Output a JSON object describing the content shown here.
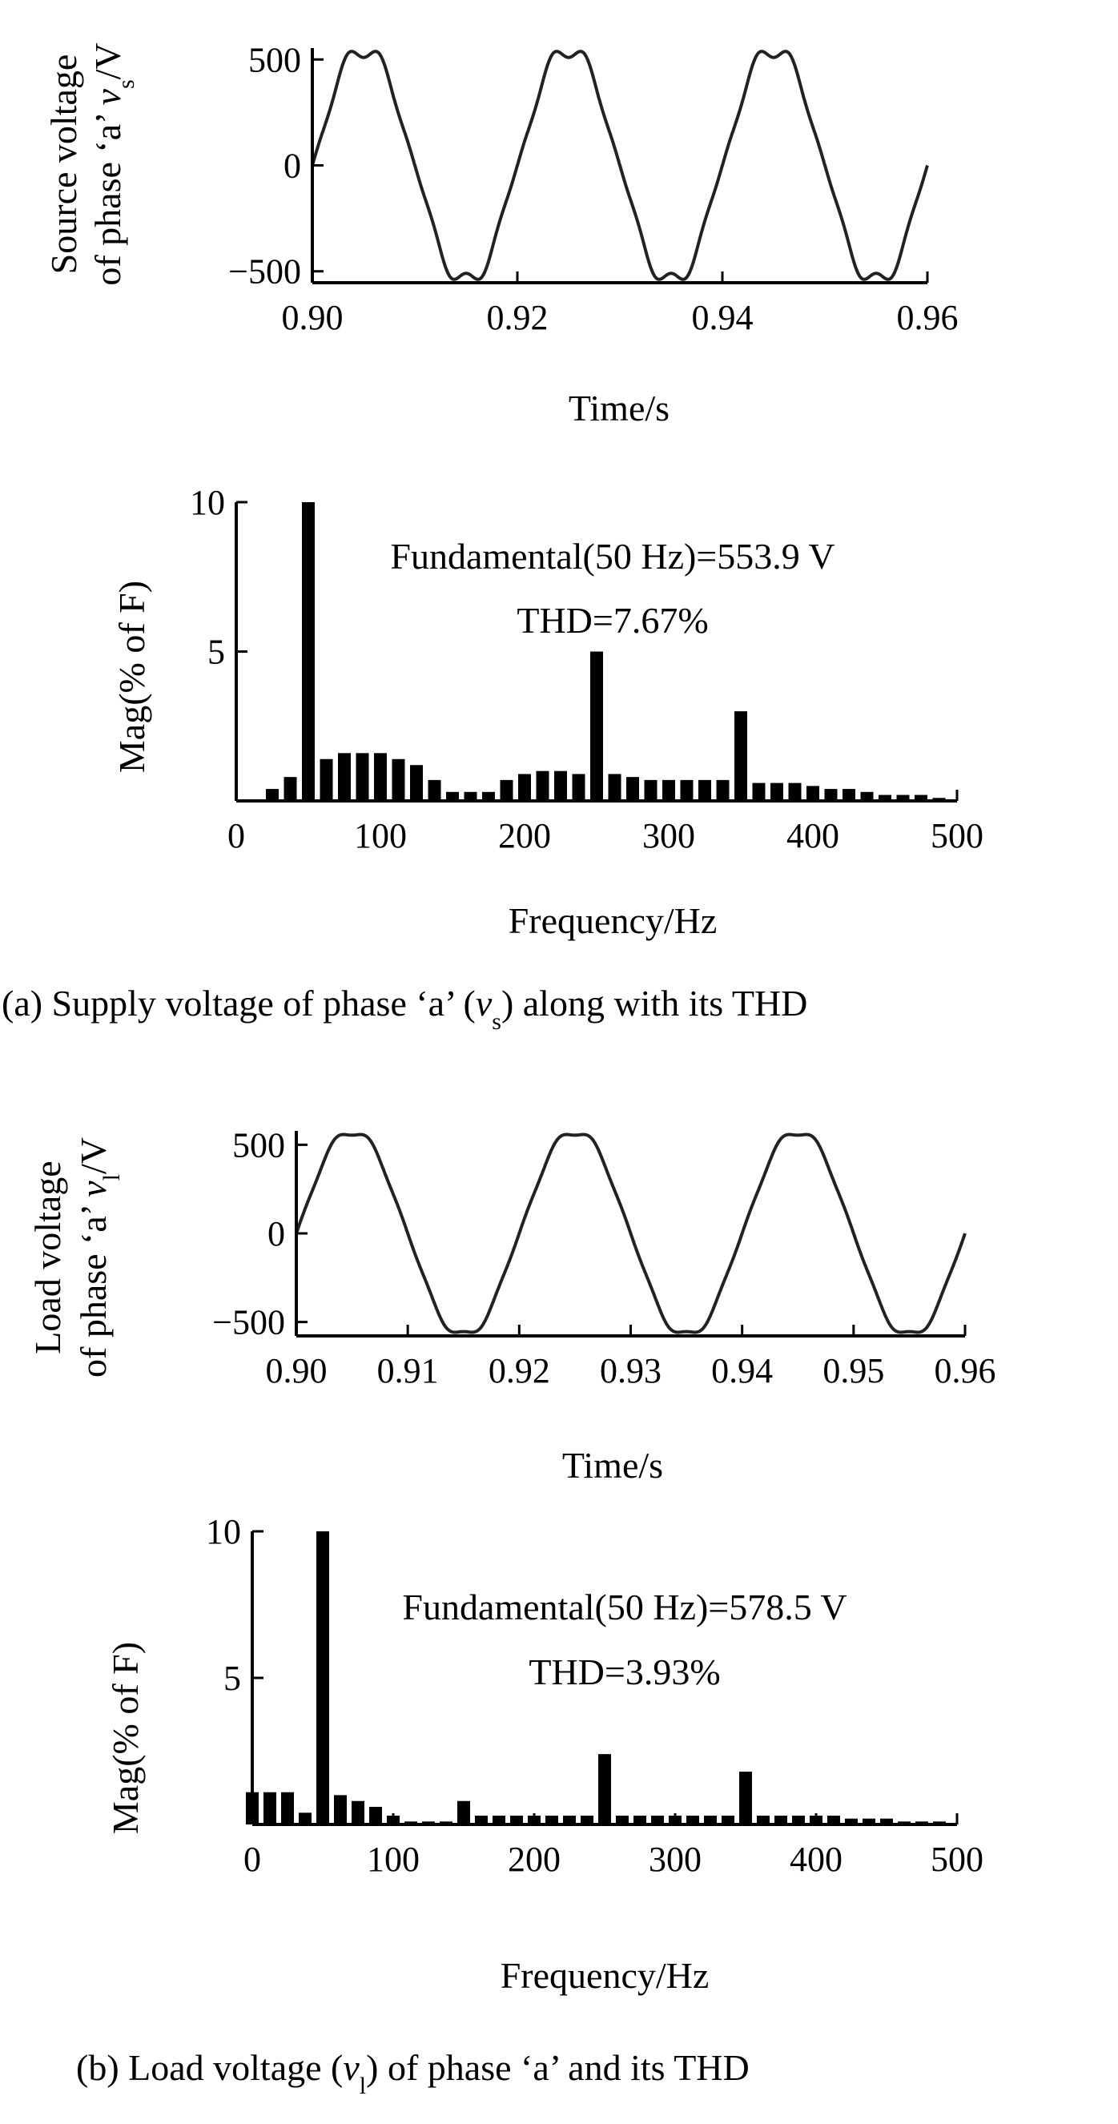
{
  "captions": {
    "a": {
      "pre": "(a) Supply voltage of  phase ‘a’ (",
      "var": "v",
      "sub": "s",
      "post": ") along with its THD"
    },
    "b": {
      "pre": "(b) Load voltage (",
      "var": "v",
      "sub": "l",
      "post": ") of phase ‘a’ and its THD"
    }
  },
  "chart_data": [
    {
      "id": "a-time",
      "type": "line",
      "title": "",
      "xlabel": "Time/s",
      "ylabel": {
        "line1": "Source voltage",
        "line2_pre": "of phase ‘a’ ",
        "var": "v",
        "sub": "s",
        "unit": "/V"
      },
      "xlim": [
        0.9,
        0.96
      ],
      "ylim": [
        -553.9,
        553.9
      ],
      "xticks": [
        "0.90",
        "0.92",
        "0.94",
        "0.96"
      ],
      "xtick_values": [
        0.9,
        0.92,
        0.94,
        0.96
      ],
      "yticks": [
        "500",
        "0",
        "−500"
      ],
      "ytick_values": [
        500,
        0,
        -500
      ],
      "series": [
        {
          "frequency_hz": 50,
          "amplitude_v": 553.9,
          "harmonics": [
            {
              "order": 5,
              "pct": 5.0
            },
            {
              "order": 7,
              "pct": 3.0
            }
          ]
        }
      ]
    },
    {
      "id": "a-spectrum",
      "type": "bar",
      "title": "",
      "xlabel": "Frequency/Hz",
      "ylabel": "Mag(% of F)",
      "xlim": [
        0,
        500
      ],
      "ylim": [
        0,
        10
      ],
      "xticks": [
        "0",
        "100",
        "200",
        "300",
        "400",
        "500"
      ],
      "xtick_values": [
        0,
        100,
        200,
        300,
        400,
        500
      ],
      "yticks": [
        "10",
        "5"
      ],
      "ytick_values": [
        10,
        5
      ],
      "annotation": [
        "Fundamental(50 Hz)=553.9 V",
        "THD=7.67%"
      ],
      "x": [
        25,
        37.5,
        50,
        62.5,
        75,
        87.5,
        100,
        112.5,
        125,
        137.5,
        150,
        162.5,
        175,
        187.5,
        200,
        212.5,
        225,
        237.5,
        250,
        262.5,
        275,
        287.5,
        300,
        312.5,
        325,
        337.5,
        350,
        362.5,
        375,
        387.5,
        400,
        412.5,
        425,
        437.5,
        450,
        462.5,
        475,
        487.5
      ],
      "values": [
        0.4,
        0.8,
        10,
        1.4,
        1.6,
        1.6,
        1.6,
        1.4,
        1.2,
        0.7,
        0.3,
        0.3,
        0.3,
        0.7,
        0.9,
        1.0,
        1.0,
        0.9,
        5.0,
        0.9,
        0.8,
        0.7,
        0.7,
        0.7,
        0.7,
        0.7,
        3.0,
        0.6,
        0.6,
        0.6,
        0.5,
        0.4,
        0.4,
        0.3,
        0.2,
        0.2,
        0.2,
        0.1
      ]
    },
    {
      "id": "b-time",
      "type": "line",
      "title": "",
      "xlabel": "Time/s",
      "ylabel": {
        "line1": "Load voltage",
        "line2_pre": "of phase ‘a’ ",
        "var": "v",
        "sub": "l",
        "unit": "/V"
      },
      "xlim": [
        0.9,
        0.96
      ],
      "ylim": [
        -578.5,
        578.5
      ],
      "xticks": [
        "0.90",
        "0.91",
        "0.92",
        "0.93",
        "0.94",
        "0.95",
        "0.96"
      ],
      "xtick_values": [
        0.9,
        0.91,
        0.92,
        0.93,
        0.94,
        0.95,
        0.96
      ],
      "yticks": [
        "500",
        "0",
        "−500"
      ],
      "ytick_values": [
        500,
        0,
        -500
      ],
      "series": [
        {
          "frequency_hz": 50,
          "amplitude_v": 578.5,
          "harmonics": [
            {
              "order": 5,
              "pct": 2.4
            },
            {
              "order": 7,
              "pct": 1.8
            }
          ]
        }
      ]
    },
    {
      "id": "b-spectrum",
      "type": "bar",
      "title": "",
      "xlabel": "Frequency/Hz",
      "ylabel": "Mag(% of F)",
      "xlim": [
        0,
        500
      ],
      "ylim": [
        0,
        10
      ],
      "xticks": [
        "0",
        "100",
        "200",
        "300",
        "400",
        "500"
      ],
      "xtick_values": [
        0,
        100,
        200,
        300,
        400,
        500
      ],
      "yticks": [
        "10",
        "5"
      ],
      "ytick_values": [
        10,
        5
      ],
      "annotation": [
        "Fundamental(50 Hz)=578.5 V",
        "THD=3.93%"
      ],
      "x": [
        0,
        12.5,
        25,
        37.5,
        50,
        62.5,
        75,
        87.5,
        100,
        112.5,
        125,
        137.5,
        150,
        162.5,
        175,
        187.5,
        200,
        212.5,
        225,
        237.5,
        250,
        262.5,
        275,
        287.5,
        300,
        312.5,
        325,
        337.5,
        350,
        362.5,
        375,
        387.5,
        400,
        412.5,
        425,
        437.5,
        450,
        462.5,
        475,
        487.5
      ],
      "values": [
        1.1,
        1.1,
        1.1,
        0.4,
        10,
        1.0,
        0.8,
        0.6,
        0.3,
        0.1,
        0.1,
        0.1,
        0.8,
        0.3,
        0.3,
        0.3,
        0.3,
        0.3,
        0.3,
        0.3,
        2.4,
        0.3,
        0.3,
        0.3,
        0.3,
        0.3,
        0.3,
        0.3,
        1.8,
        0.3,
        0.3,
        0.3,
        0.3,
        0.3,
        0.2,
        0.2,
        0.2,
        0.1,
        0.1,
        0.1
      ]
    }
  ]
}
